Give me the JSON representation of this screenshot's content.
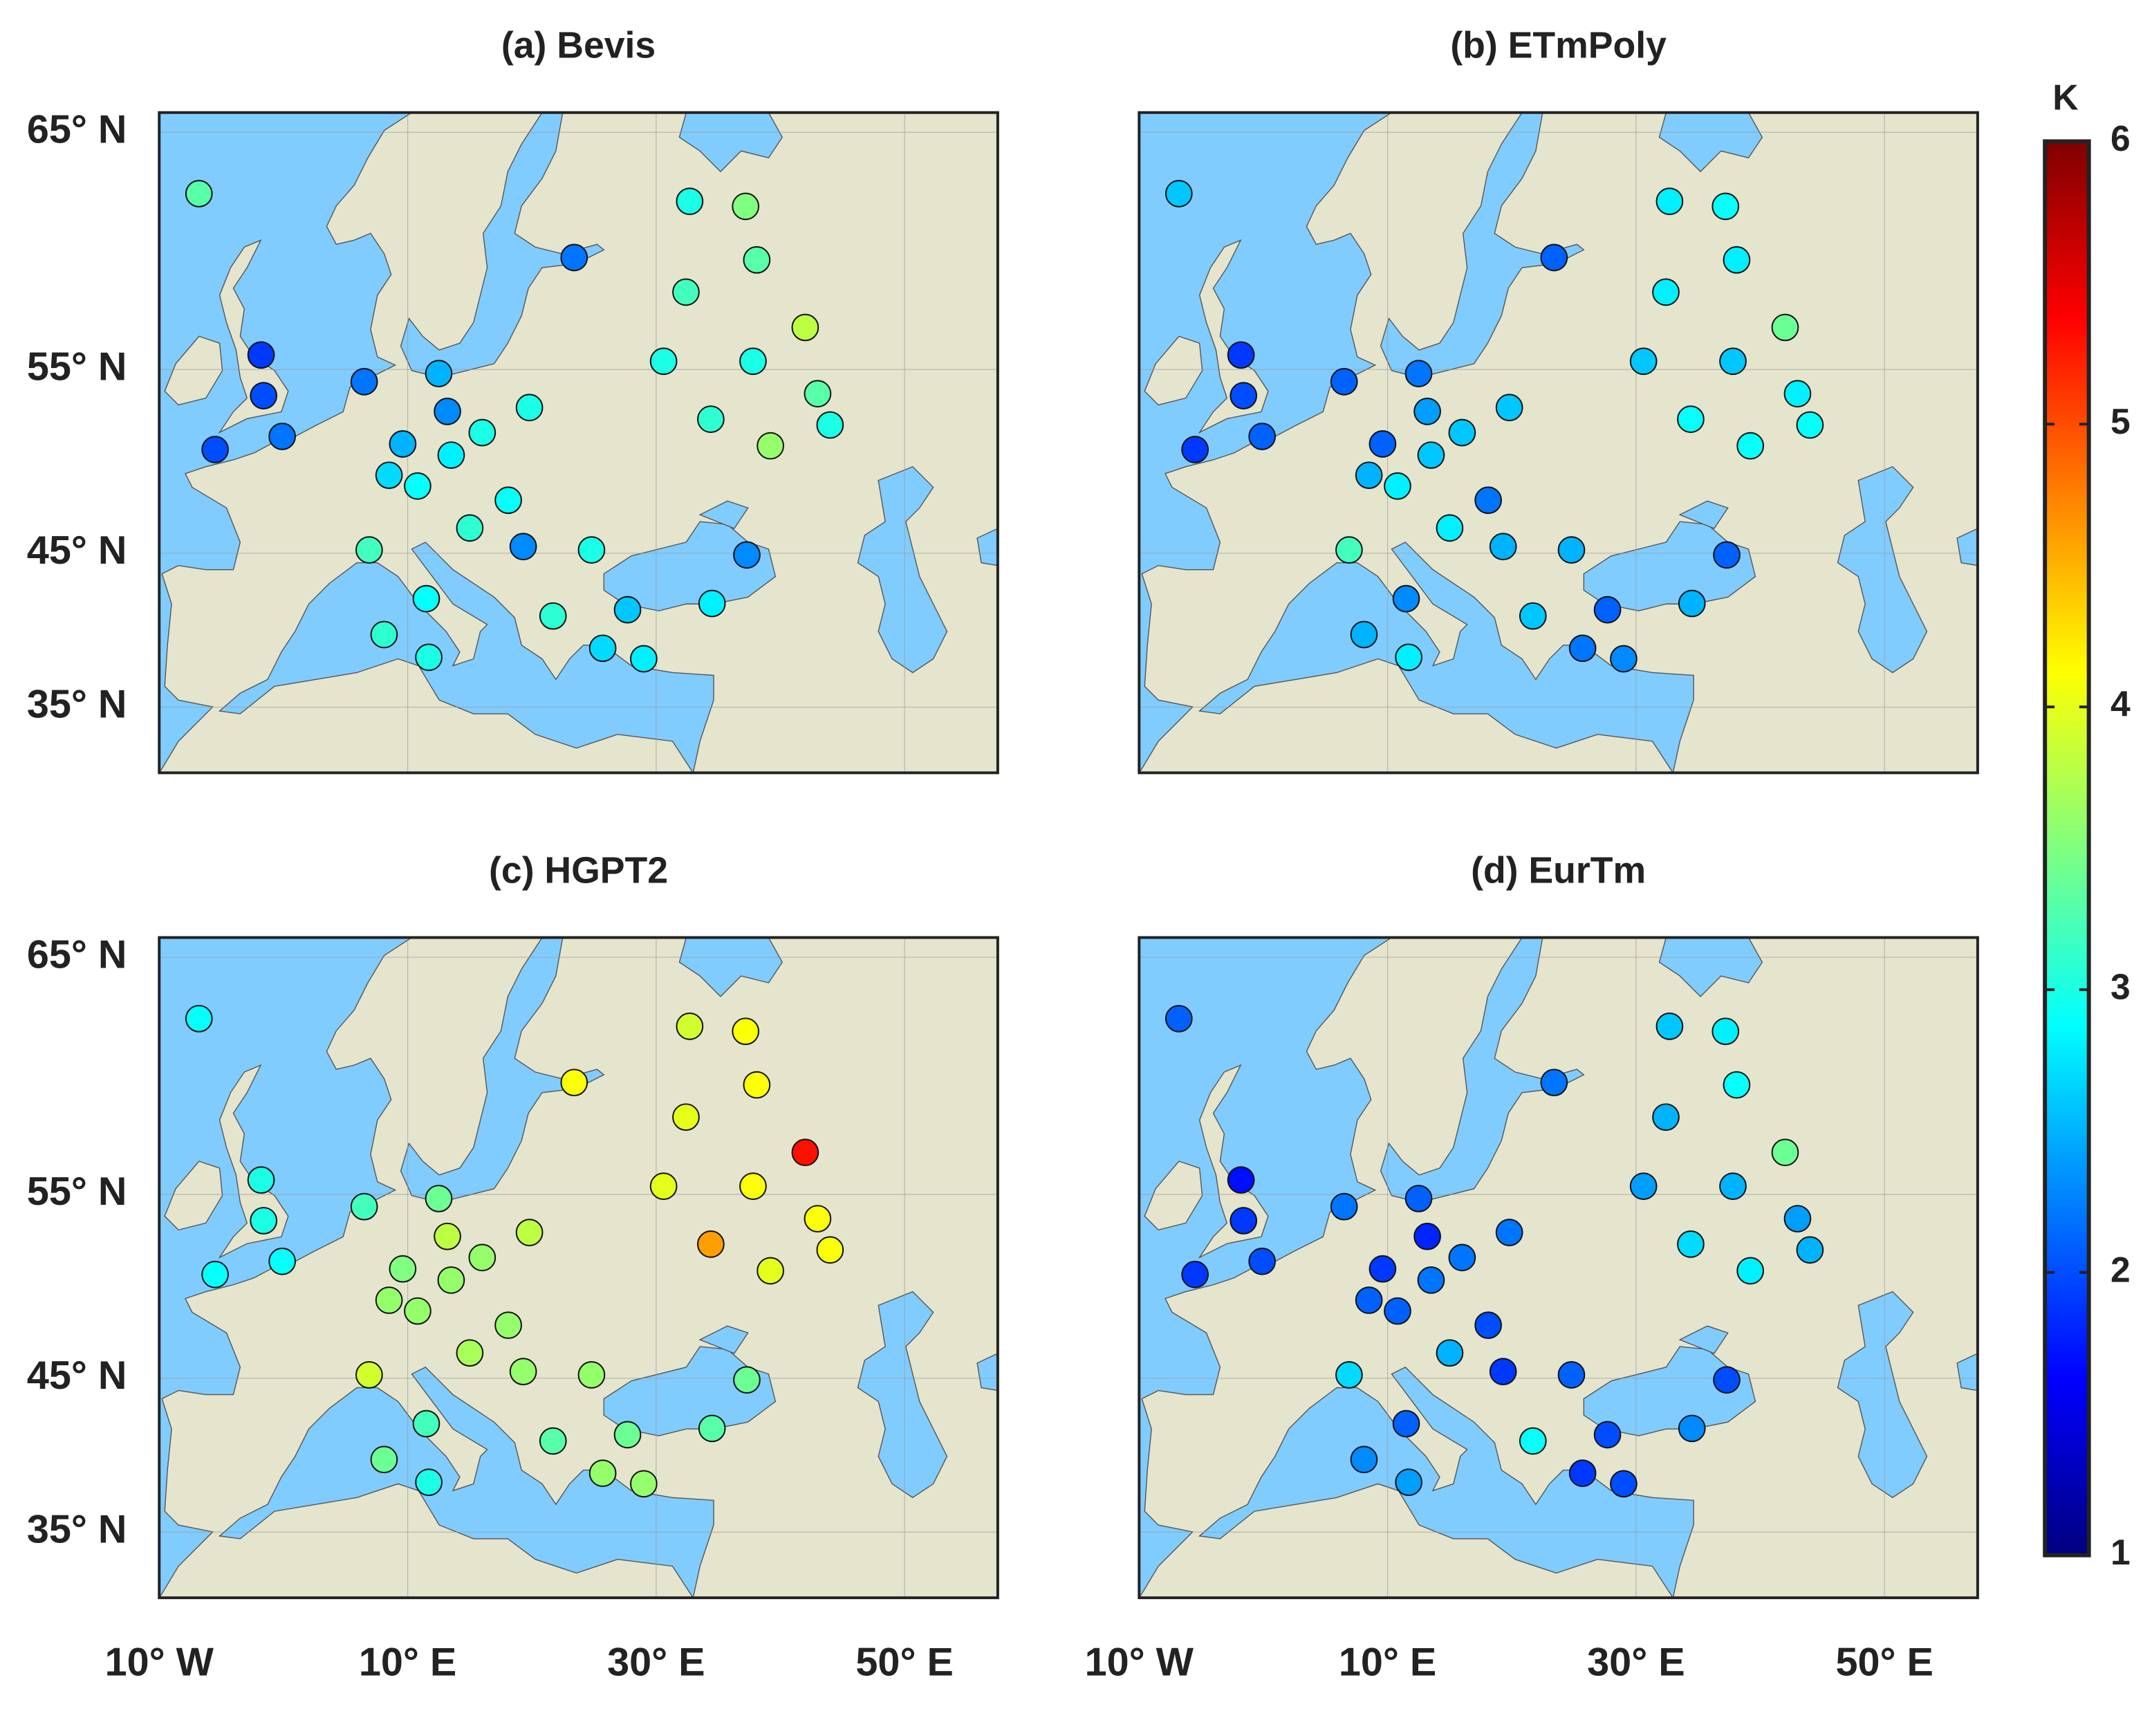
{
  "chart_data": [
    {
      "type": "scatter",
      "title": "(a) Bevis",
      "x": [
        -6.8,
        -1.8,
        -1.6,
        -5.5,
        -0.1,
        6.5,
        12.5,
        13.2,
        9.6,
        13.5,
        16,
        19.8,
        8.5,
        10.8,
        18.1,
        15,
        19.3,
        6.9,
        24.8,
        11.5,
        8.1,
        11.7,
        21.7,
        27.7,
        25.7,
        29,
        37.3,
        34.5,
        23.4,
        32.7,
        37.2,
        38.1,
        32.4,
        42,
        30.6,
        37.8,
        43,
        34.4,
        44,
        39.2
      ],
      "y": [
        62.7,
        55.7,
        53.7,
        50.9,
        51.6,
        54.4,
        54.8,
        52.9,
        51.2,
        50.6,
        51.8,
        53.1,
        49.5,
        48.9,
        48.1,
        46.5,
        45.4,
        45.2,
        45.2,
        42.2,
        39.9,
        38.4,
        41.1,
        41.5,
        39.0,
        38.3,
        44.9,
        41.9,
        60.1,
        62.4,
        62.2,
        60.0,
        58.6,
        57.0,
        55.4,
        55.4,
        53.8,
        52.5,
        52.2,
        51.1
      ],
      "values": [
        3.3,
        1.9,
        2.0,
        2.0,
        2.2,
        2.2,
        2.5,
        2.3,
        2.5,
        2.8,
        3.0,
        3.0,
        2.7,
        2.9,
        2.9,
        3.1,
        2.3,
        3.2,
        3.0,
        2.9,
        3.1,
        3.0,
        3.1,
        2.6,
        2.7,
        2.8,
        2.3,
        2.8,
        2.2,
        3.0,
        3.5,
        3.3,
        3.2,
        3.8,
        3.0,
        3.0,
        3.3,
        3.1,
        3.0,
        3.6
      ],
      "xlim": [
        -10,
        57.5
      ],
      "ylim": [
        30.3,
        65.7
      ],
      "projection": "mercator",
      "grid": true,
      "xticks": [
        -10,
        10,
        30,
        50
      ],
      "yticks": [
        {
          "value": 35,
          "label": "35° N"
        },
        {
          "value": 45,
          "label": "45° N"
        },
        {
          "value": 55,
          "label": "55° N"
        },
        {
          "value": 65,
          "label": "65° N"
        }
      ]
    },
    {
      "type": "scatter",
      "title": "(b) ETmPoly",
      "x": [
        -6.8,
        -1.8,
        -1.6,
        -5.5,
        -0.1,
        6.5,
        12.5,
        13.2,
        9.6,
        13.5,
        16,
        19.8,
        8.5,
        10.8,
        18.1,
        15,
        19.3,
        6.9,
        24.8,
        11.5,
        8.1,
        11.7,
        21.7,
        27.7,
        25.7,
        29,
        37.3,
        34.5,
        23.4,
        32.7,
        37.2,
        38.1,
        32.4,
        42,
        30.6,
        37.8,
        43,
        34.4,
        44,
        39.2
      ],
      "y": [
        62.7,
        55.7,
        53.7,
        50.9,
        51.6,
        54.4,
        54.8,
        52.9,
        51.2,
        50.6,
        51.8,
        53.1,
        49.5,
        48.9,
        48.1,
        46.5,
        45.4,
        45.2,
        45.2,
        42.2,
        39.9,
        38.4,
        41.1,
        41.5,
        39.0,
        38.3,
        44.9,
        41.9,
        60.1,
        62.4,
        62.2,
        60.0,
        58.6,
        57.0,
        55.4,
        55.4,
        53.8,
        52.5,
        52.2,
        51.1
      ],
      "values": [
        2.6,
        1.9,
        2.0,
        1.9,
        2.1,
        2.1,
        2.2,
        2.4,
        2.1,
        2.6,
        2.6,
        2.6,
        2.5,
        2.8,
        2.2,
        2.8,
        2.5,
        3.2,
        2.5,
        2.3,
        2.5,
        2.8,
        2.6,
        2.1,
        2.2,
        2.3,
        2.1,
        2.5,
        2.1,
        2.8,
        2.9,
        2.8,
        2.8,
        3.4,
        2.6,
        2.6,
        2.8,
        2.9,
        2.9,
        2.9
      ],
      "xlim": [
        -10,
        57.5
      ],
      "ylim": [
        30.3,
        65.7
      ],
      "projection": "mercator",
      "grid": true,
      "xticks": [
        -10,
        10,
        30,
        50
      ],
      "yticks": [
        35,
        45,
        55,
        65
      ]
    },
    {
      "type": "scatter",
      "title": "(c) HGPT2",
      "x": [
        -6.8,
        -1.8,
        -1.6,
        -5.5,
        -0.1,
        6.5,
        12.5,
        13.2,
        9.6,
        13.5,
        16,
        19.8,
        8.5,
        10.8,
        18.1,
        15,
        19.3,
        6.9,
        24.8,
        11.5,
        8.1,
        11.7,
        21.7,
        27.7,
        25.7,
        29,
        37.3,
        34.5,
        23.4,
        32.7,
        37.2,
        38.1,
        32.4,
        42,
        30.6,
        37.8,
        43,
        34.4,
        44,
        39.2
      ],
      "y": [
        62.7,
        55.7,
        53.7,
        50.9,
        51.6,
        54.4,
        54.8,
        52.9,
        51.2,
        50.6,
        51.8,
        53.1,
        49.5,
        48.9,
        48.1,
        46.5,
        45.4,
        45.2,
        45.2,
        42.2,
        39.9,
        38.4,
        41.1,
        41.5,
        39.0,
        38.3,
        44.9,
        41.9,
        60.1,
        62.4,
        62.2,
        60.0,
        58.6,
        57.0,
        55.4,
        55.4,
        53.8,
        52.5,
        52.2,
        51.1
      ],
      "values": [
        2.9,
        3.0,
        3.0,
        2.9,
        2.9,
        3.2,
        3.4,
        3.8,
        3.5,
        3.6,
        3.6,
        3.8,
        3.6,
        3.6,
        3.6,
        3.7,
        3.6,
        3.9,
        3.6,
        3.2,
        3.4,
        3.0,
        3.3,
        3.4,
        3.6,
        3.6,
        3.4,
        3.3,
        4.1,
        3.9,
        4.1,
        4.1,
        4.0,
        5.3,
        4.0,
        4.1,
        4.1,
        4.6,
        4.1,
        4.0
      ],
      "xlim": [
        -10,
        57.5
      ],
      "ylim": [
        30.3,
        65.7
      ],
      "projection": "mercator",
      "grid": true,
      "xticks": [
        {
          "value": -10,
          "label": "10° W"
        },
        {
          "value": 10,
          "label": "10° E"
        },
        {
          "value": 30,
          "label": "30° E"
        },
        {
          "value": 50,
          "label": "50° E"
        }
      ],
      "yticks": [
        {
          "value": 35,
          "label": "35° N"
        },
        {
          "value": 45,
          "label": "45° N"
        },
        {
          "value": 55,
          "label": "55° N"
        },
        {
          "value": 65,
          "label": "65° N"
        }
      ]
    },
    {
      "type": "scatter",
      "title": "(d) EurTm",
      "x": [
        -6.8,
        -1.8,
        -1.6,
        -5.5,
        -0.1,
        6.5,
        12.5,
        13.2,
        9.6,
        13.5,
        16,
        19.8,
        8.5,
        10.8,
        18.1,
        15,
        19.3,
        6.9,
        24.8,
        11.5,
        8.1,
        11.7,
        21.7,
        27.7,
        25.7,
        29,
        37.3,
        34.5,
        23.4,
        32.7,
        37.2,
        38.1,
        32.4,
        42,
        30.6,
        37.8,
        43,
        34.4,
        44,
        39.2
      ],
      "y": [
        62.7,
        55.7,
        53.7,
        50.9,
        51.6,
        54.4,
        54.8,
        52.9,
        51.2,
        50.6,
        51.8,
        53.1,
        49.5,
        48.9,
        48.1,
        46.5,
        45.4,
        45.2,
        45.2,
        42.2,
        39.9,
        38.4,
        41.1,
        41.5,
        39.0,
        38.3,
        44.9,
        41.9,
        60.1,
        62.4,
        62.2,
        60.0,
        58.6,
        57.0,
        55.4,
        55.4,
        53.8,
        52.5,
        52.2,
        51.1
      ],
      "values": [
        2.1,
        1.7,
        1.9,
        1.9,
        2.0,
        2.2,
        2.1,
        1.8,
        1.9,
        2.2,
        2.2,
        2.2,
        2.1,
        2.1,
        2.0,
        2.5,
        1.9,
        2.7,
        2.1,
        2.1,
        2.3,
        2.4,
        2.9,
        2.0,
        1.9,
        2.0,
        2.0,
        2.3,
        2.2,
        2.6,
        2.8,
        2.9,
        2.5,
        3.4,
        2.4,
        2.5,
        2.4,
        2.7,
        2.5,
        2.8
      ],
      "xlim": [
        -10,
        57.5
      ],
      "ylim": [
        30.3,
        65.7
      ],
      "projection": "mercator",
      "grid": true,
      "xticks": [
        {
          "value": -10,
          "label": "10° W"
        },
        {
          "value": 10,
          "label": "10° E"
        },
        {
          "value": 30,
          "label": "30° E"
        },
        {
          "value": 50,
          "label": "50° E"
        }
      ],
      "yticks": [
        35,
        45,
        55,
        65
      ]
    }
  ],
  "colorbar": {
    "label": "K",
    "colormap": "jet",
    "lim": [
      1,
      6
    ],
    "ticks": [
      1,
      2,
      3,
      4,
      5,
      6
    ]
  }
}
